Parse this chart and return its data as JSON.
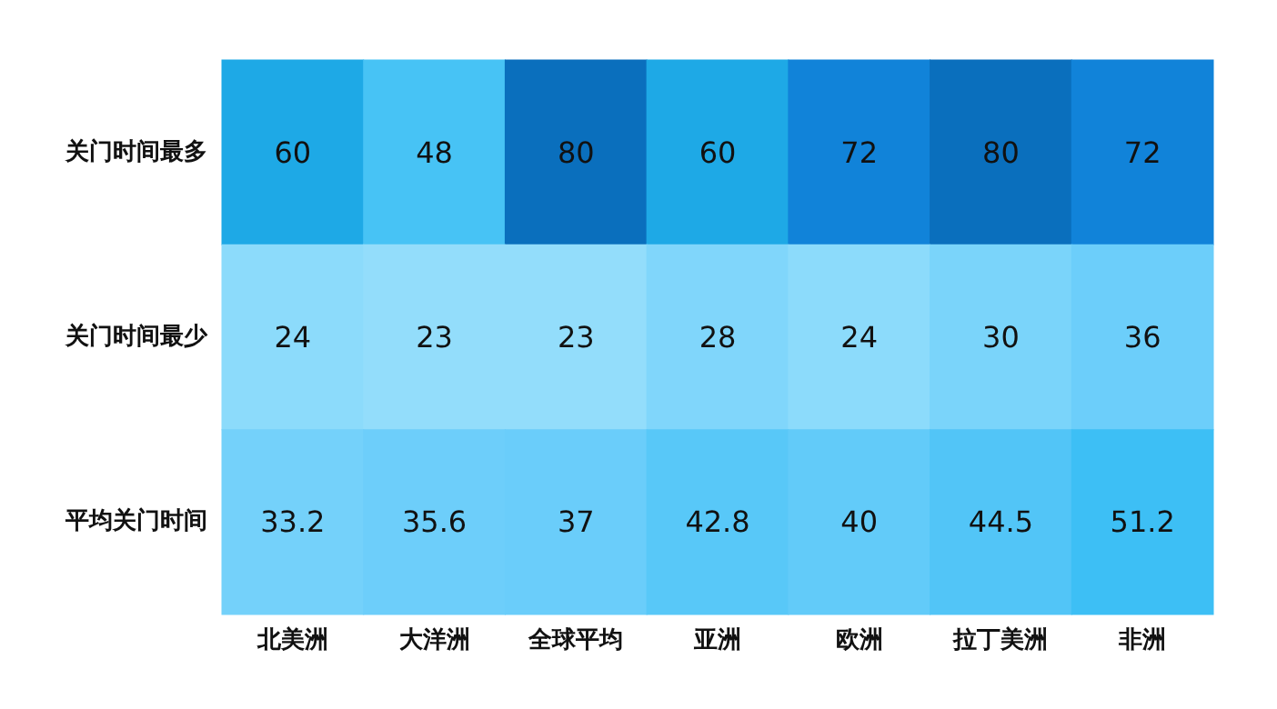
{
  "chart_data": {
    "type": "heatmap",
    "categories": [
      "北美洲",
      "大洋洲",
      "全球平均",
      "亚洲",
      "欧洲",
      "拉丁美洲",
      "非洲"
    ],
    "y_categories": [
      "关门时间最多",
      "关门时间最少",
      "平均关门时间"
    ],
    "cells": [
      [
        60,
        48,
        80,
        60,
        72,
        80,
        72
      ],
      [
        24,
        23,
        23,
        28,
        24,
        30,
        36
      ],
      [
        33.2,
        35.6,
        37,
        42.8,
        40,
        44.5,
        51.2
      ]
    ],
    "colors": [
      [
        "#1ea9e6",
        "#47c3f5",
        "#0a6fbd",
        "#1ea9e6",
        "#1183d9",
        "#0a6fbd",
        "#1183d9"
      ],
      [
        "#8cdbfb",
        "#93ddfb",
        "#93ddfb",
        "#80d6fb",
        "#8cdbfb",
        "#7ad4fa",
        "#6ccefa"
      ],
      [
        "#74d1fa",
        "#6dcefa",
        "#6acdfa",
        "#58c8f8",
        "#62cbf9",
        "#52c5f7",
        "#3dbff5"
      ]
    ],
    "data_labels": true
  }
}
